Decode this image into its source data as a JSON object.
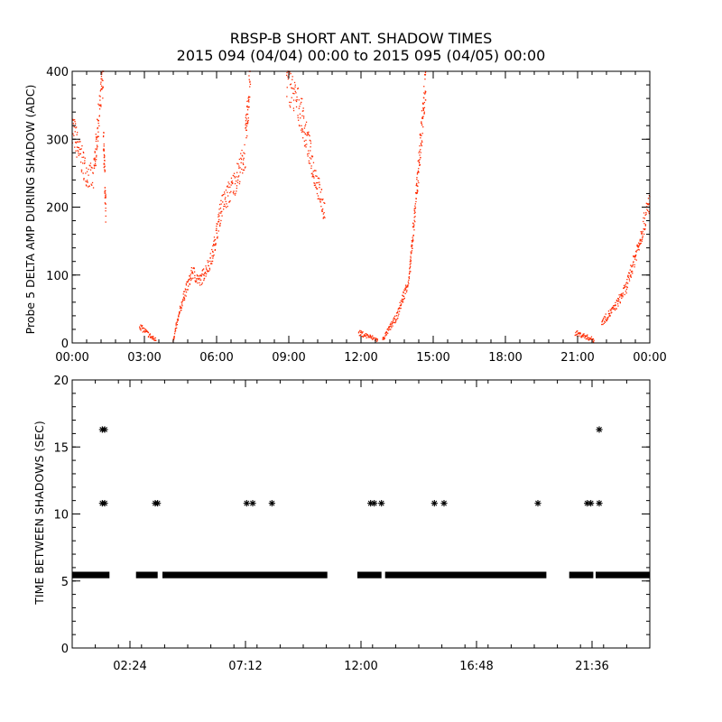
{
  "figure": {
    "title_line1": "RBSP-B SHORT ANT. SHADOW TIMES",
    "title_line2": "2015 094 (04/04) 00:00 to 2015 095 (04/05) 00:00"
  },
  "colors": {
    "top_series": "#ff2a00",
    "bottom_series": "#000000"
  },
  "chart_data": [
    {
      "type": "scatter",
      "ylabel": "Probe 5 DELTA AMP DURING SHADOW (ADC)",
      "xlim": [
        0,
        24
      ],
      "ylim": [
        0,
        400
      ],
      "xticks": [
        0,
        3,
        6,
        9,
        12,
        15,
        18,
        21,
        24
      ],
      "xtick_labels": [
        "00:00",
        "03:00",
        "06:00",
        "09:00",
        "12:00",
        "15:00",
        "18:00",
        "21:00",
        "00:00"
      ],
      "yticks": [
        0,
        100,
        200,
        300,
        400
      ],
      "ytick_labels": [
        "0",
        "100",
        "200",
        "300",
        "400"
      ],
      "series": [
        {
          "marker": "dot",
          "segments": [
            {
              "x": [
                0.0,
                0.3,
                0.6,
                0.9
              ],
              "y": [
                320,
                280,
                250,
                240
              ]
            },
            {
              "x": [
                0.9,
                1.1,
                1.3
              ],
              "y": [
                250,
                330,
                400
              ]
            },
            {
              "x": [
                1.3,
                1.4
              ],
              "y": [
                300,
                190
              ]
            },
            {
              "x": [
                2.8,
                3.1,
                3.3,
                3.5
              ],
              "y": [
                25,
                15,
                8,
                4
              ]
            },
            {
              "x": [
                4.2,
                4.6,
                5.0,
                5.3,
                5.8,
                6.2,
                6.8,
                7.2
              ],
              "y": [
                5,
                65,
                105,
                90,
                125,
                200,
                240,
                280
              ]
            },
            {
              "x": [
                7.2,
                7.4
              ],
              "y": [
                300,
                390
              ]
            },
            {
              "x": [
                8.9,
                9.5,
                10.0,
                10.5
              ],
              "y": [
                390,
                340,
                260,
                190
              ]
            },
            {
              "x": [
                11.9,
                12.3,
                12.7
              ],
              "y": [
                15,
                10,
                4
              ]
            },
            {
              "x": [
                12.9,
                13.5,
                14.0,
                14.4,
                14.7
              ],
              "y": [
                5,
                40,
                95,
                260,
                390
              ]
            },
            {
              "x": [
                20.9,
                21.3,
                21.7
              ],
              "y": [
                15,
                10,
                4
              ]
            },
            {
              "x": [
                22.0,
                22.5,
                23.0,
                23.5,
                24.0
              ],
              "y": [
                30,
                50,
                80,
                140,
                210
              ]
            }
          ]
        }
      ]
    },
    {
      "type": "scatter",
      "ylabel": "TIME BETWEEN SHADOWS (SEC)",
      "xlim": [
        0,
        24
      ],
      "ylim": [
        0,
        20
      ],
      "xticks": [
        2.4,
        7.2,
        12.0,
        16.8,
        21.6
      ],
      "xtick_labels": [
        "02:24",
        "07:12",
        "12:00",
        "16:48",
        "21:36"
      ],
      "yticks": [
        0,
        5,
        10,
        15,
        20
      ],
      "ytick_labels": [
        "0",
        "5",
        "10",
        "15",
        "20"
      ],
      "series": [
        {
          "marker": "asterisk",
          "baseline": {
            "y": 5.45,
            "ranges": [
              [
                0,
                1.55
              ],
              [
                2.65,
                3.55
              ],
              [
                3.75,
                10.6
              ],
              [
                11.85,
                12.85
              ],
              [
                13.0,
                19.7
              ],
              [
                20.65,
                21.65
              ],
              [
                21.75,
                24
              ]
            ]
          },
          "points": [
            {
              "x": 1.25,
              "y": 16.3
            },
            {
              "x": 1.35,
              "y": 16.3
            },
            {
              "x": 1.25,
              "y": 10.8
            },
            {
              "x": 1.35,
              "y": 10.8
            },
            {
              "x": 3.45,
              "y": 10.8
            },
            {
              "x": 3.55,
              "y": 10.8
            },
            {
              "x": 7.25,
              "y": 10.8
            },
            {
              "x": 7.5,
              "y": 10.8
            },
            {
              "x": 8.3,
              "y": 10.8
            },
            {
              "x": 12.4,
              "y": 10.8
            },
            {
              "x": 12.55,
              "y": 10.8
            },
            {
              "x": 12.85,
              "y": 10.8
            },
            {
              "x": 15.05,
              "y": 10.8
            },
            {
              "x": 15.45,
              "y": 10.8
            },
            {
              "x": 19.35,
              "y": 10.8
            },
            {
              "x": 21.4,
              "y": 10.8
            },
            {
              "x": 21.55,
              "y": 10.8
            },
            {
              "x": 21.9,
              "y": 10.8
            },
            {
              "x": 21.9,
              "y": 16.3
            }
          ]
        }
      ]
    }
  ]
}
